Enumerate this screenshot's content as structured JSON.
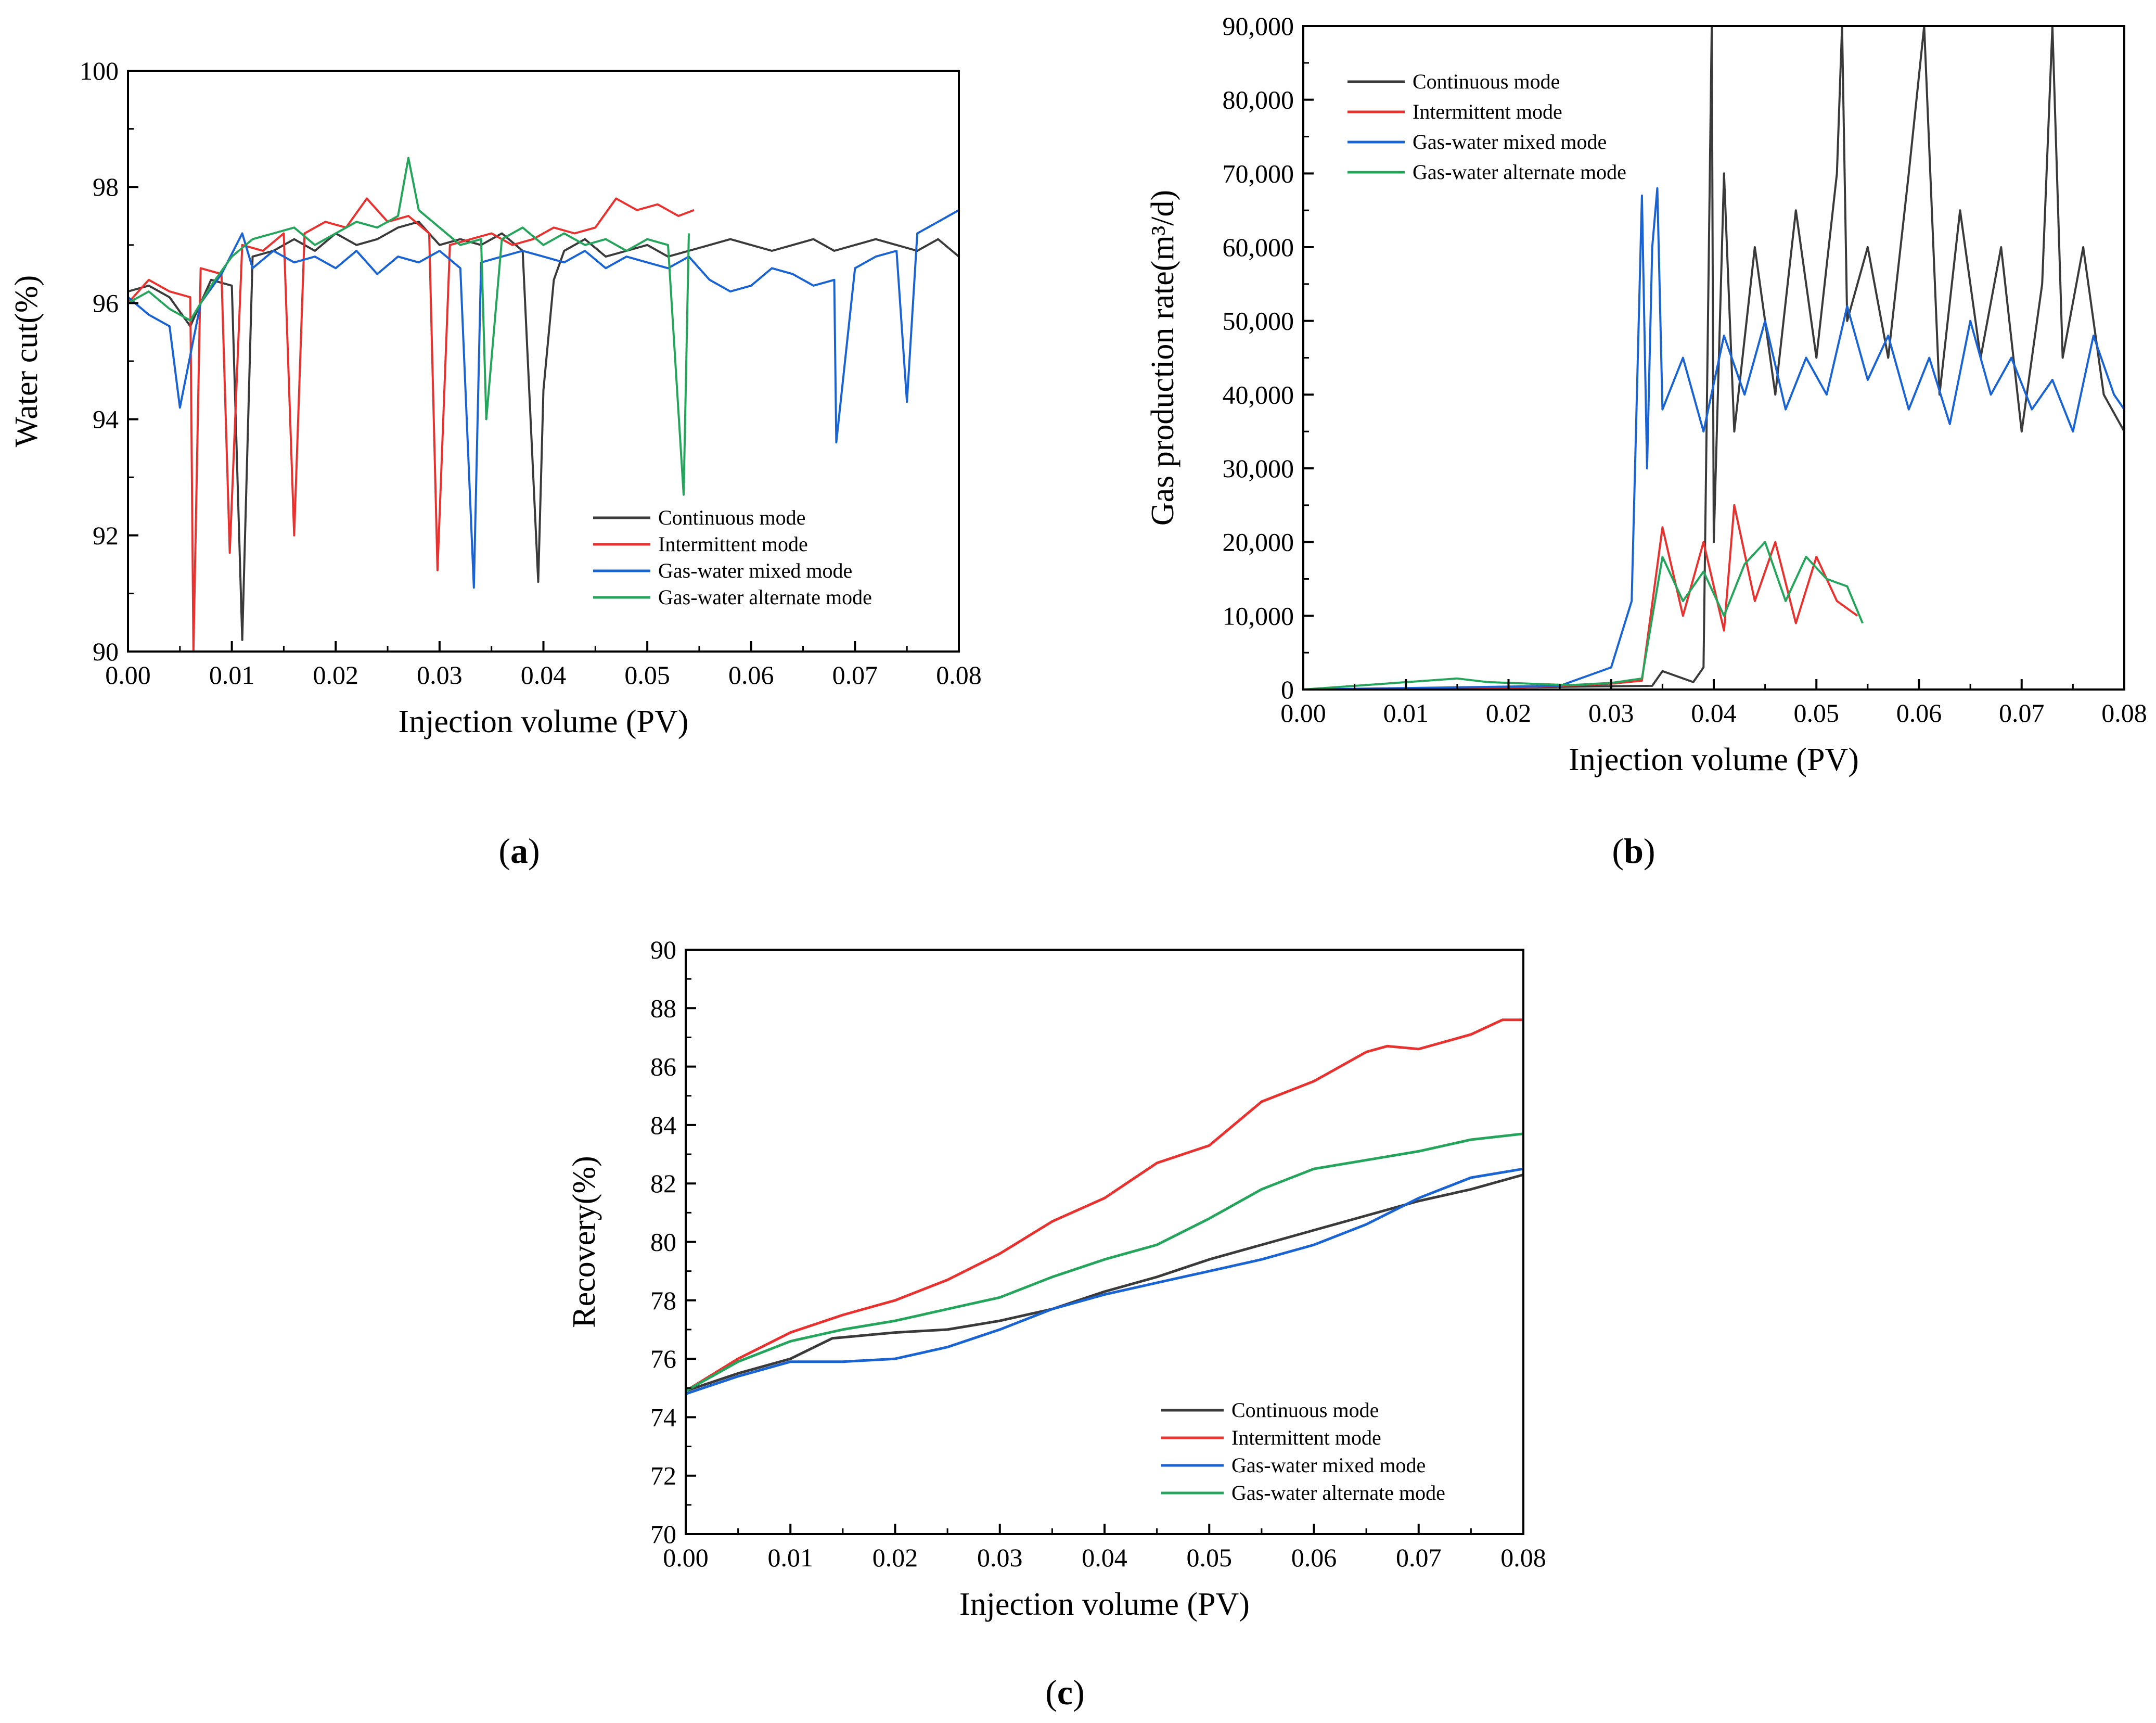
{
  "colors": {
    "continuous": "#3a3a3a",
    "intermittent": "#e8322f",
    "mixed": "#1a63d2",
    "alternate": "#25a45c"
  },
  "panels": [
    {
      "caption": "a",
      "chart_data": {
        "type": "line",
        "title": "",
        "xlabel": "Injection volume (PV)",
        "ylabel": "Water cut(%)",
        "xlim": [
          0,
          0.08
        ],
        "ylim": [
          90,
          100
        ],
        "x_ticks": [
          "0.00",
          "0.01",
          "0.02",
          "0.03",
          "0.04",
          "0.05",
          "0.06",
          "0.07",
          "0.08"
        ],
        "y_ticks": [
          "90",
          "92",
          "94",
          "96",
          "98",
          "100"
        ],
        "legend": [
          "Continuous mode",
          "Intermittent  mode",
          "Gas-water mixed  mode",
          "Gas-water alternate mode"
        ],
        "legend_position": "bottom-right",
        "series": [
          {
            "name": "Continuous mode",
            "color_key": "continuous",
            "x": [
              0.0,
              0.002,
              0.004,
              0.006,
              0.008,
              0.01,
              0.011,
              0.012,
              0.014,
              0.016,
              0.018,
              0.02,
              0.022,
              0.024,
              0.026,
              0.028,
              0.03,
              0.032,
              0.034,
              0.036,
              0.038,
              0.0395,
              0.04,
              0.041,
              0.042,
              0.044,
              0.046,
              0.048,
              0.05,
              0.052,
              0.054,
              0.056,
              0.058,
              0.06,
              0.062,
              0.064,
              0.066,
              0.068,
              0.07,
              0.072,
              0.074,
              0.076,
              0.078,
              0.08
            ],
            "values": [
              96.2,
              96.3,
              96.1,
              95.6,
              96.4,
              96.3,
              90.2,
              96.8,
              96.9,
              97.1,
              96.9,
              97.2,
              97.0,
              97.1,
              97.3,
              97.4,
              97.0,
              97.1,
              97.0,
              97.2,
              96.9,
              91.2,
              94.5,
              96.4,
              96.9,
              97.1,
              96.8,
              96.9,
              97.0,
              96.8,
              96.9,
              97.0,
              97.1,
              97.0,
              96.9,
              97.0,
              97.1,
              96.9,
              97.0,
              97.1,
              97.0,
              96.9,
              97.1,
              96.8
            ]
          },
          {
            "name": "Intermittent  mode",
            "color_key": "intermittent",
            "x": [
              0.0,
              0.002,
              0.004,
              0.006,
              0.0063,
              0.007,
              0.009,
              0.0098,
              0.011,
              0.013,
              0.015,
              0.016,
              0.017,
              0.019,
              0.021,
              0.023,
              0.025,
              0.027,
              0.029,
              0.0298,
              0.031,
              0.033,
              0.035,
              0.037,
              0.039,
              0.041,
              0.043,
              0.045,
              0.047,
              0.049,
              0.051,
              0.053,
              0.0545
            ],
            "values": [
              96.0,
              96.4,
              96.2,
              96.1,
              90.0,
              96.6,
              96.5,
              91.7,
              97.0,
              96.9,
              97.2,
              92.0,
              97.2,
              97.4,
              97.3,
              97.8,
              97.4,
              97.5,
              97.2,
              91.4,
              97.0,
              97.1,
              97.2,
              97.0,
              97.1,
              97.3,
              97.2,
              97.3,
              97.8,
              97.6,
              97.7,
              97.5,
              97.6
            ]
          },
          {
            "name": "Gas-water mixed  mode",
            "color_key": "mixed",
            "x": [
              0.0,
              0.002,
              0.004,
              0.005,
              0.007,
              0.009,
              0.011,
              0.012,
              0.014,
              0.016,
              0.018,
              0.02,
              0.022,
              0.024,
              0.026,
              0.028,
              0.03,
              0.032,
              0.0333,
              0.034,
              0.036,
              0.038,
              0.04,
              0.042,
              0.044,
              0.046,
              0.048,
              0.05,
              0.052,
              0.054,
              0.056,
              0.058,
              0.06,
              0.062,
              0.064,
              0.066,
              0.068,
              0.0682,
              0.07,
              0.072,
              0.074,
              0.075,
              0.076,
              0.078,
              0.08
            ],
            "values": [
              96.1,
              95.8,
              95.6,
              94.2,
              96.0,
              96.5,
              97.2,
              96.6,
              96.9,
              96.7,
              96.8,
              96.6,
              96.9,
              96.5,
              96.8,
              96.7,
              96.9,
              96.6,
              91.1,
              96.7,
              96.8,
              96.9,
              96.8,
              96.7,
              96.9,
              96.6,
              96.8,
              96.7,
              96.6,
              96.8,
              96.4,
              96.2,
              96.3,
              96.6,
              96.5,
              96.3,
              96.4,
              93.6,
              96.6,
              96.8,
              96.9,
              94.3,
              97.2,
              97.4,
              97.6
            ]
          },
          {
            "name": "Gas-water alternate mode",
            "color_key": "alternate",
            "x": [
              0.0,
              0.002,
              0.004,
              0.006,
              0.008,
              0.01,
              0.012,
              0.014,
              0.016,
              0.018,
              0.02,
              0.022,
              0.024,
              0.026,
              0.027,
              0.028,
              0.03,
              0.032,
              0.034,
              0.0345,
              0.036,
              0.038,
              0.04,
              0.042,
              0.044,
              0.046,
              0.048,
              0.05,
              0.052,
              0.0535,
              0.054
            ],
            "values": [
              96.0,
              96.2,
              95.9,
              95.7,
              96.3,
              96.8,
              97.1,
              97.2,
              97.3,
              97.0,
              97.2,
              97.4,
              97.3,
              97.5,
              98.5,
              97.6,
              97.3,
              97.0,
              97.1,
              94.0,
              97.1,
              97.3,
              97.0,
              97.2,
              97.0,
              97.1,
              96.9,
              97.1,
              97.0,
              92.7,
              97.2
            ]
          }
        ]
      }
    },
    {
      "caption": "b",
      "chart_data": {
        "type": "line",
        "title": "",
        "xlabel": "Injection volume (PV)",
        "ylabel": "Gas production rate(m³/d)",
        "xlim": [
          0,
          0.08
        ],
        "ylim": [
          0,
          90000
        ],
        "x_ticks": [
          "0.00",
          "0.01",
          "0.02",
          "0.03",
          "0.04",
          "0.05",
          "0.06",
          "0.07",
          "0.08"
        ],
        "y_ticks": [
          "0",
          "10,000",
          "20,000",
          "30,000",
          "40,000",
          "50,000",
          "60,000",
          "70,000",
          "80,000",
          "90,000"
        ],
        "legend": [
          "Continuous mode",
          "Intermittent mode",
          "Gas-water mixed mode",
          "Gas-water alternate mode"
        ],
        "legend_position": "top-left",
        "series": [
          {
            "name": "Continuous mode",
            "color_key": "continuous",
            "x": [
              0.0,
              0.034,
              0.035,
              0.038,
              0.039,
              0.0398,
              0.04,
              0.041,
              0.042,
              0.044,
              0.046,
              0.048,
              0.05,
              0.052,
              0.0525,
              0.053,
              0.055,
              0.057,
              0.059,
              0.0605,
              0.062,
              0.064,
              0.066,
              0.068,
              0.07,
              0.072,
              0.073,
              0.074,
              0.076,
              0.078,
              0.08
            ],
            "values": [
              0,
              500,
              2500,
              1000,
              3000,
              90000,
              20000,
              70000,
              35000,
              60000,
              40000,
              65000,
              45000,
              70000,
              90000,
              50000,
              60000,
              45000,
              70000,
              90000,
              40000,
              65000,
              45000,
              60000,
              35000,
              55000,
              90000,
              45000,
              60000,
              40000,
              35000
            ]
          },
          {
            "name": "Intermittent mode",
            "color_key": "intermittent",
            "x": [
              0.0,
              0.02,
              0.03,
              0.033,
              0.035,
              0.037,
              0.039,
              0.041,
              0.042,
              0.044,
              0.046,
              0.048,
              0.05,
              0.052,
              0.054
            ],
            "values": [
              0,
              200,
              800,
              1200,
              22000,
              10000,
              20000,
              8000,
              25000,
              12000,
              20000,
              9000,
              18000,
              12000,
              10000
            ]
          },
          {
            "name": "Gas-water mixed mode",
            "color_key": "mixed",
            "x": [
              0.0,
              0.025,
              0.03,
              0.032,
              0.033,
              0.0335,
              0.034,
              0.0345,
              0.035,
              0.037,
              0.039,
              0.041,
              0.043,
              0.045,
              0.047,
              0.049,
              0.051,
              0.053,
              0.055,
              0.057,
              0.059,
              0.061,
              0.063,
              0.065,
              0.067,
              0.069,
              0.071,
              0.073,
              0.075,
              0.077,
              0.079,
              0.08
            ],
            "values": [
              0,
              500,
              3000,
              12000,
              67000,
              30000,
              60000,
              68000,
              38000,
              45000,
              35000,
              48000,
              40000,
              50000,
              38000,
              45000,
              40000,
              52000,
              42000,
              48000,
              38000,
              45000,
              36000,
              50000,
              40000,
              45000,
              38000,
              42000,
              35000,
              48000,
              40000,
              38000
            ]
          },
          {
            "name": "Gas-water alternate mode",
            "color_key": "alternate",
            "x": [
              0.0,
              0.015,
              0.018,
              0.022,
              0.026,
              0.03,
              0.033,
              0.035,
              0.037,
              0.039,
              0.041,
              0.043,
              0.045,
              0.047,
              0.049,
              0.051,
              0.053,
              0.0545
            ],
            "values": [
              0,
              1500,
              1000,
              800,
              600,
              900,
              1500,
              18000,
              12000,
              16000,
              10000,
              17000,
              20000,
              12000,
              18000,
              15000,
              14000,
              9000
            ]
          }
        ]
      }
    },
    {
      "caption": "c",
      "chart_data": {
        "type": "line",
        "title": "",
        "xlabel": "Injection volume (PV)",
        "ylabel": "Recovery(%)",
        "xlim": [
          0,
          0.08
        ],
        "ylim": [
          70,
          90
        ],
        "x_ticks": [
          "0.00",
          "0.01",
          "0.02",
          "0.03",
          "0.04",
          "0.05",
          "0.06",
          "0.07",
          "0.08"
        ],
        "y_ticks": [
          "70",
          "72",
          "74",
          "76",
          "78",
          "80",
          "82",
          "84",
          "86",
          "88",
          "90"
        ],
        "legend": [
          "Continuous mode",
          "Intermittent mode",
          "Gas-water mixed mode",
          "Gas-water alternate mode"
        ],
        "legend_position": "bottom-right",
        "series": [
          {
            "name": "Continuous mode",
            "color_key": "continuous",
            "x": [
              0.0,
              0.005,
              0.01,
              0.014,
              0.02,
              0.025,
              0.03,
              0.035,
              0.04,
              0.045,
              0.05,
              0.055,
              0.06,
              0.065,
              0.07,
              0.075,
              0.08
            ],
            "values": [
              74.9,
              75.5,
              76.0,
              76.7,
              76.9,
              77.0,
              77.3,
              77.7,
              78.3,
              78.8,
              79.4,
              79.9,
              80.4,
              80.9,
              81.4,
              81.8,
              82.3
            ]
          },
          {
            "name": "Intermittent mode",
            "color_key": "intermittent",
            "x": [
              0.0,
              0.005,
              0.01,
              0.015,
              0.02,
              0.025,
              0.03,
              0.035,
              0.04,
              0.045,
              0.05,
              0.055,
              0.06,
              0.065,
              0.067,
              0.07,
              0.075,
              0.078,
              0.08
            ],
            "values": [
              74.9,
              76.0,
              76.9,
              77.5,
              78.0,
              78.7,
              79.6,
              80.7,
              81.5,
              82.7,
              83.3,
              84.8,
              85.5,
              86.5,
              86.7,
              86.6,
              87.1,
              87.6,
              87.6
            ]
          },
          {
            "name": "Gas-water mixed mode",
            "color_key": "mixed",
            "x": [
              0.0,
              0.005,
              0.01,
              0.015,
              0.02,
              0.025,
              0.03,
              0.035,
              0.04,
              0.045,
              0.05,
              0.055,
              0.06,
              0.065,
              0.07,
              0.075,
              0.08
            ],
            "values": [
              74.8,
              75.4,
              75.9,
              75.9,
              76.0,
              76.4,
              77.0,
              77.7,
              78.2,
              78.6,
              79.0,
              79.4,
              79.9,
              80.6,
              81.5,
              82.2,
              82.5
            ]
          },
          {
            "name": "Gas-water alternate mode",
            "color_key": "alternate",
            "x": [
              0.0,
              0.005,
              0.01,
              0.015,
              0.02,
              0.025,
              0.03,
              0.035,
              0.04,
              0.045,
              0.05,
              0.055,
              0.06,
              0.065,
              0.07,
              0.075,
              0.08
            ],
            "values": [
              74.9,
              75.9,
              76.6,
              77.0,
              77.3,
              77.7,
              78.1,
              78.8,
              79.4,
              79.9,
              80.8,
              81.8,
              82.5,
              82.8,
              83.1,
              83.5,
              83.7
            ]
          }
        ]
      }
    }
  ]
}
